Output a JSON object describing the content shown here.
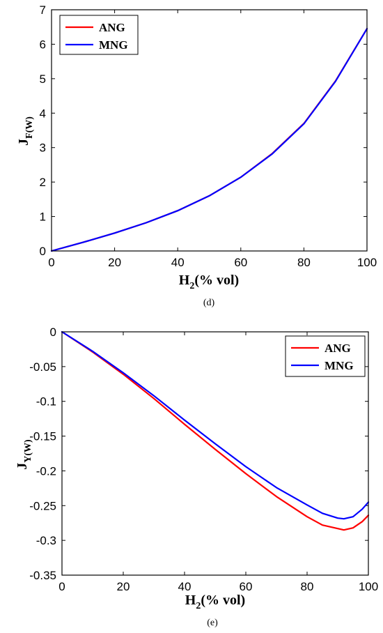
{
  "chart_data": [
    {
      "type": "line",
      "xlabel_main": "H",
      "xlabel_sub": "2",
      "xlabel_rest": "(% vol)",
      "ylabel_main": "J",
      "ylabel_sub": "F(W)",
      "caption": "(d)",
      "xlim": [
        0,
        100
      ],
      "ylim": [
        0,
        7
      ],
      "xticks": [
        0,
        20,
        40,
        60,
        80,
        100
      ],
      "yticks": [
        0,
        1,
        2,
        3,
        4,
        5,
        6,
        7
      ],
      "grid": false,
      "legend_position": "top-left",
      "series": [
        {
          "name": "ANG",
          "color": "#ff0000",
          "x": [
            0,
            10,
            20,
            30,
            40,
            50,
            60,
            70,
            80,
            90,
            100
          ],
          "y": [
            0,
            0.25,
            0.52,
            0.82,
            1.17,
            1.6,
            2.14,
            2.83,
            3.7,
            4.93,
            6.45
          ]
        },
        {
          "name": "MNG",
          "color": "#0000ff",
          "x": [
            0,
            10,
            20,
            30,
            40,
            50,
            60,
            70,
            80,
            90,
            100
          ],
          "y": [
            0,
            0.25,
            0.52,
            0.82,
            1.17,
            1.6,
            2.14,
            2.82,
            3.69,
            4.92,
            6.45
          ]
        }
      ]
    },
    {
      "type": "line",
      "xlabel_main": "H",
      "xlabel_sub": "2",
      "xlabel_rest": "(% vol)",
      "ylabel_main": "J",
      "ylabel_sub": "Y(W)",
      "caption": "(e)",
      "xlim": [
        0,
        100
      ],
      "ylim": [
        -0.35,
        0
      ],
      "xticks": [
        0,
        20,
        40,
        60,
        80,
        100
      ],
      "yticks": [
        0,
        -0.05,
        -0.1,
        -0.15,
        -0.2,
        -0.25,
        -0.3,
        -0.35
      ],
      "grid": false,
      "legend_position": "top-right",
      "series": [
        {
          "name": "ANG",
          "color": "#ff0000",
          "x": [
            0,
            10,
            20,
            30,
            40,
            50,
            60,
            70,
            80,
            85,
            90,
            92,
            95,
            98,
            100
          ],
          "y": [
            0,
            -0.029,
            -0.061,
            -0.096,
            -0.133,
            -0.169,
            -0.204,
            -0.237,
            -0.266,
            -0.278,
            -0.283,
            -0.285,
            -0.282,
            -0.273,
            -0.264
          ]
        },
        {
          "name": "MNG",
          "color": "#0000ff",
          "x": [
            0,
            10,
            20,
            30,
            40,
            50,
            60,
            70,
            80,
            85,
            90,
            92,
            95,
            98,
            100
          ],
          "y": [
            0,
            -0.028,
            -0.059,
            -0.092,
            -0.127,
            -0.161,
            -0.194,
            -0.224,
            -0.249,
            -0.261,
            -0.268,
            -0.269,
            -0.266,
            -0.255,
            -0.245
          ]
        }
      ]
    }
  ]
}
